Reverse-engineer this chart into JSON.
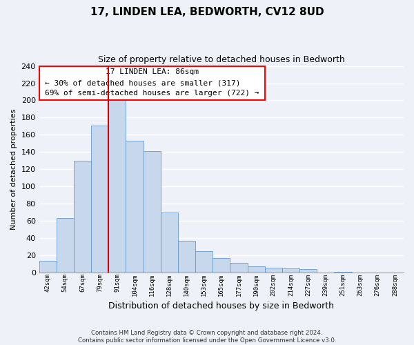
{
  "title": "17, LINDEN LEA, BEDWORTH, CV12 8UD",
  "subtitle": "Size of property relative to detached houses in Bedworth",
  "xlabel": "Distribution of detached houses by size in Bedworth",
  "ylabel": "Number of detached properties",
  "bin_labels": [
    "42sqm",
    "54sqm",
    "67sqm",
    "79sqm",
    "91sqm",
    "104sqm",
    "116sqm",
    "128sqm",
    "140sqm",
    "153sqm",
    "165sqm",
    "177sqm",
    "190sqm",
    "202sqm",
    "214sqm",
    "227sqm",
    "239sqm",
    "251sqm",
    "263sqm",
    "276sqm",
    "288sqm"
  ],
  "bar_values": [
    14,
    63,
    130,
    171,
    200,
    153,
    141,
    70,
    37,
    25,
    17,
    11,
    7,
    6,
    5,
    4,
    0,
    1,
    0,
    0,
    0
  ],
  "bar_color": "#c8d8ec",
  "bar_edge_color": "#6699cc",
  "ylim": [
    0,
    240
  ],
  "yticks": [
    0,
    20,
    40,
    60,
    80,
    100,
    120,
    140,
    160,
    180,
    200,
    220,
    240
  ],
  "annotation_title": "17 LINDEN LEA: 86sqm",
  "annotation_line1": "← 30% of detached houses are smaller (317)",
  "annotation_line2": "69% of semi-detached houses are larger (722) →",
  "property_bar_index": 3,
  "footer_line1": "Contains HM Land Registry data © Crown copyright and database right 2024.",
  "footer_line2": "Contains public sector information licensed under the Open Government Licence v3.0.",
  "bg_color": "#eef2f8",
  "grid_color": "#ffffff",
  "vline_color": "#cc0000"
}
